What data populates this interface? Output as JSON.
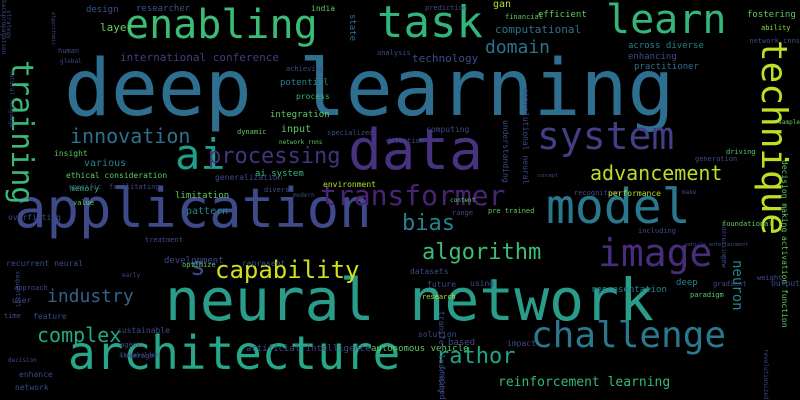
{
  "words": [
    {
      "text": "deep learning",
      "size": 78,
      "color": "#2e6e8e",
      "vertical": false
    },
    {
      "text": "neural network",
      "size": 58,
      "color": "#2a9d8a",
      "vertical": false
    },
    {
      "text": "application",
      "size": 54,
      "color": "#3f4a8a",
      "vertical": false
    },
    {
      "text": "architecture",
      "size": 46,
      "color": "#27a78a",
      "vertical": false
    },
    {
      "text": "data",
      "size": 56,
      "color": "#46327e",
      "vertical": false
    },
    {
      "text": "model",
      "size": 48,
      "color": "#2a788e",
      "vertical": false
    },
    {
      "text": "task",
      "size": 44,
      "color": "#31b57b",
      "vertical": false
    },
    {
      "text": "enabling",
      "size": 40,
      "color": "#3bbb75",
      "vertical": false
    },
    {
      "text": "learn",
      "size": 40,
      "color": "#34b679",
      "vertical": false
    },
    {
      "text": "technique",
      "size": 36,
      "color": "#bddf26",
      "vertical": true
    },
    {
      "text": "system",
      "size": 38,
      "color": "#433e85",
      "vertical": false
    },
    {
      "text": "ai",
      "size": 42,
      "color": "#1f9e89",
      "vertical": false
    },
    {
      "text": "training",
      "size": 30,
      "color": "#3aba76",
      "vertical": true
    },
    {
      "text": "image",
      "size": 38,
      "color": "#472d7b",
      "vertical": false
    },
    {
      "text": "challenge",
      "size": 36,
      "color": "#2a788e",
      "vertical": false
    },
    {
      "text": "transformer",
      "size": 28,
      "color": "#482475",
      "vertical": false
    },
    {
      "text": "processing",
      "size": 22,
      "color": "#46327e",
      "vertical": false
    },
    {
      "text": "innovation",
      "size": 20,
      "color": "#2d708e",
      "vertical": false
    },
    {
      "text": "advancement",
      "size": 20,
      "color": "#b8de29",
      "vertical": false
    },
    {
      "text": "bias",
      "size": 22,
      "color": "#26828e",
      "vertical": false
    },
    {
      "text": "algorithm",
      "size": 22,
      "color": "#3fbc73",
      "vertical": false
    },
    {
      "text": "capability",
      "size": 24,
      "color": "#d0e11c",
      "vertical": false
    },
    {
      "text": "s",
      "size": 26,
      "color": "#3e4a89",
      "vertical": false
    },
    {
      "text": "industry",
      "size": 18,
      "color": "#33638d",
      "vertical": false
    },
    {
      "text": "complex",
      "size": 20,
      "color": "#22a884",
      "vertical": false
    },
    {
      "text": "rathor",
      "size": 22,
      "color": "#20a386",
      "vertical": false
    },
    {
      "text": "domain",
      "size": 18,
      "color": "#2c728e",
      "vertical": false
    },
    {
      "text": "reinforcement learning",
      "size": 13,
      "color": "#35b779",
      "vertical": false
    },
    {
      "text": "neuron",
      "size": 14,
      "color": "#26828e",
      "vertical": true
    },
    {
      "text": "international conference",
      "size": 11,
      "color": "#443b84",
      "vertical": false
    },
    {
      "text": "layer",
      "size": 11,
      "color": "#6ece58",
      "vertical": false
    },
    {
      "text": "researcher",
      "size": 9,
      "color": "#3b528b",
      "vertical": false
    },
    {
      "text": "design",
      "size": 9,
      "color": "#3b528b",
      "vertical": false
    },
    {
      "text": "computational",
      "size": 11,
      "color": "#2c728e",
      "vertical": false
    },
    {
      "text": "technology",
      "size": 11,
      "color": "#3e4a89",
      "vertical": false
    },
    {
      "text": "across diverse",
      "size": 9,
      "color": "#26828e",
      "vertical": false
    },
    {
      "text": "enhancing",
      "size": 9,
      "color": "#3e4a89",
      "vertical": false
    },
    {
      "text": "practitioner",
      "size": 9,
      "color": "#2d708e",
      "vertical": false
    },
    {
      "text": "efficient",
      "size": 9,
      "color": "#5ec962",
      "vertical": false
    },
    {
      "text": "fostering",
      "size": 9,
      "color": "#5ec962",
      "vertical": false
    },
    {
      "text": "ability",
      "size": 7,
      "color": "#8fd744",
      "vertical": false
    },
    {
      "text": "network cnns",
      "size": 7,
      "color": "#3e4a89",
      "vertical": false
    },
    {
      "text": "gan",
      "size": 10,
      "color": "#b5de2b",
      "vertical": false
    },
    {
      "text": "financial",
      "size": 7,
      "color": "#5ec962",
      "vertical": false
    },
    {
      "text": "prediction",
      "size": 7,
      "color": "#3e4a89",
      "vertical": false
    },
    {
      "text": "india",
      "size": 8,
      "color": "#5ec962",
      "vertical": false
    },
    {
      "text": "state",
      "size": 9,
      "color": "#2d708e",
      "vertical": true
    },
    {
      "text": "analysis",
      "size": 7,
      "color": "#3e4a89",
      "vertical": false
    },
    {
      "text": "human",
      "size": 7,
      "color": "#3e4a89",
      "vertical": false
    },
    {
      "text": "global",
      "size": 6,
      "color": "#3e4a89",
      "vertical": false
    },
    {
      "text": "achieving",
      "size": 7,
      "color": "#3e4a89",
      "vertical": false
    },
    {
      "text": "potential",
      "size": 9,
      "color": "#26828e",
      "vertical": false
    },
    {
      "text": "process",
      "size": 8,
      "color": "#35b779",
      "vertical": false
    },
    {
      "text": "integration",
      "size": 9,
      "color": "#5ec962",
      "vertical": false
    },
    {
      "text": "input",
      "size": 10,
      "color": "#5ec962",
      "vertical": false
    },
    {
      "text": "dynamic",
      "size": 7,
      "color": "#5ec962",
      "vertical": false
    },
    {
      "text": "network rnns",
      "size": 6,
      "color": "#5ec962",
      "vertical": false
    },
    {
      "text": "ai system",
      "size": 9,
      "color": "#35b779",
      "vertical": false
    },
    {
      "text": "specialized",
      "size": 7,
      "color": "#3e4a89",
      "vertical": false
    },
    {
      "text": "computing",
      "size": 8,
      "color": "#3e4a89",
      "vertical": false
    },
    {
      "text": "detection",
      "size": 7,
      "color": "#3e4a89",
      "vertical": false
    },
    {
      "text": "understanding",
      "size": 8,
      "color": "#3e4a89",
      "vertical": true
    },
    {
      "text": "convolutional neural",
      "size": 8,
      "color": "#3e4a89",
      "vertical": true
    },
    {
      "text": "ethical consideration",
      "size": 8,
      "color": "#5ec962",
      "vertical": false
    },
    {
      "text": "various",
      "size": 10,
      "color": "#26828e",
      "vertical": false
    },
    {
      "text": "insight",
      "size": 8,
      "color": "#5ec962",
      "vertical": false
    },
    {
      "text": "facilitating",
      "size": 7,
      "color": "#3e4a89",
      "vertical": false
    },
    {
      "text": "memory",
      "size": 8,
      "color": "#35b779",
      "vertical": false
    },
    {
      "text": "specific",
      "size": 7,
      "color": "#3e4a89",
      "vertical": false
    },
    {
      "text": "value",
      "size": 7,
      "color": "#5ec962",
      "vertical": false
    },
    {
      "text": "limitation",
      "size": 9,
      "color": "#5ec962",
      "vertical": false
    },
    {
      "text": "generalization",
      "size": 8,
      "color": "#3e4a89",
      "vertical": false
    },
    {
      "text": "diverse",
      "size": 7,
      "color": "#3e4a89",
      "vertical": false
    },
    {
      "text": "pattern",
      "size": 10,
      "color": "#26828e",
      "vertical": false
    },
    {
      "text": "environment",
      "size": 8,
      "color": "#b5de2b",
      "vertical": false
    },
    {
      "text": "modern",
      "size": 6,
      "color": "#3e4a89",
      "vertical": false
    },
    {
      "text": "concept",
      "size": 5,
      "color": "#3e4a89",
      "vertical": false
    },
    {
      "text": "recognition",
      "size": 7,
      "color": "#3e4a89",
      "vertical": false
    },
    {
      "text": "performance",
      "size": 8,
      "color": "#b5de2b",
      "vertical": false
    },
    {
      "text": "make",
      "size": 6,
      "color": "#3e4a89",
      "vertical": false
    },
    {
      "text": "generation",
      "size": 7,
      "color": "#3e4a89",
      "vertical": false
    },
    {
      "text": "driving",
      "size": 7,
      "color": "#5ec962",
      "vertical": false
    },
    {
      "text": "sample",
      "size": 6,
      "color": "#5ec962",
      "vertical": false
    },
    {
      "text": "activation function",
      "size": 8,
      "color": "#5ec962",
      "vertical": true
    },
    {
      "text": "decision making",
      "size": 8,
      "color": "#5ec962",
      "vertical": true
    },
    {
      "text": "addressing",
      "size": 6,
      "color": "#3e4a89",
      "vertical": true
    },
    {
      "text": "content",
      "size": 6,
      "color": "#5ec962",
      "vertical": false
    },
    {
      "text": "pre trained",
      "size": 7,
      "color": "#5ec962",
      "vertical": false
    },
    {
      "text": "range",
      "size": 7,
      "color": "#3e4a89",
      "vertical": false
    },
    {
      "text": "including",
      "size": 7,
      "color": "#3e4a89",
      "vertical": false
    },
    {
      "text": "vehicle entertainment",
      "size": 5,
      "color": "#3e4a89",
      "vertical": false
    },
    {
      "text": "foundational",
      "size": 7,
      "color": "#5ec962",
      "vertical": false
    },
    {
      "text": "new",
      "size": 7,
      "color": "#3e4a89",
      "vertical": true
    },
    {
      "text": "deep",
      "size": 9,
      "color": "#26828e",
      "vertical": false
    },
    {
      "text": "gradient",
      "size": 7,
      "color": "#3e4a89",
      "vertical": false
    },
    {
      "text": "weight",
      "size": 7,
      "color": "#3e4a89",
      "vertical": false
    },
    {
      "text": "early",
      "size": 6,
      "color": "#3e4a89",
      "vertical": false
    },
    {
      "text": "development",
      "size": 9,
      "color": "#3e4a89",
      "vertical": false
    },
    {
      "text": "optimize",
      "size": 7,
      "color": "#5ec962",
      "vertical": false
    },
    {
      "text": "represent",
      "size": 8,
      "color": "#3e4a89",
      "vertical": false
    },
    {
      "text": "treatment",
      "size": 7,
      "color": "#3e4a89",
      "vertical": false
    },
    {
      "text": "sequential",
      "size": 6,
      "color": "#3e4a89",
      "vertical": true
    },
    {
      "text": "recurrent neural",
      "size": 8,
      "color": "#3e4a89",
      "vertical": false
    },
    {
      "text": "approach",
      "size": 7,
      "color": "#3e4a89",
      "vertical": false
    },
    {
      "text": "user",
      "size": 8,
      "color": "#3e4a89",
      "vertical": false
    },
    {
      "text": "feature",
      "size": 8,
      "color": "#3e4a89",
      "vertical": false
    },
    {
      "text": "sustainable",
      "size": 8,
      "color": "#3e4a89",
      "vertical": false
    },
    {
      "text": "datasets",
      "size": 8,
      "color": "#3e4a89",
      "vertical": false
    },
    {
      "text": "research",
      "size": 7,
      "color": "#b5de2b",
      "vertical": false
    },
    {
      "text": "future",
      "size": 8,
      "color": "#3e4a89",
      "vertical": false
    },
    {
      "text": "using",
      "size": 8,
      "color": "#3e4a89",
      "vertical": false
    },
    {
      "text": "representation",
      "size": 9,
      "color": "#26828e",
      "vertical": false
    },
    {
      "text": "paradigm",
      "size": 7,
      "color": "#5ec962",
      "vertical": false
    },
    {
      "text": "time",
      "size": 7,
      "color": "#3e4a89",
      "vertical": false
    },
    {
      "text": "agent",
      "size": 7,
      "color": "#3e4a89",
      "vertical": false
    },
    {
      "text": "artificial intelligence",
      "size": 9,
      "color": "#3e4a89",
      "vertical": false
    },
    {
      "text": "autonomous vehicle",
      "size": 9,
      "color": "#5ec962",
      "vertical": false
    },
    {
      "text": "based",
      "size": 9,
      "color": "#3e4a89",
      "vertical": false
    },
    {
      "text": "impact",
      "size": 8,
      "color": "#3e4a89",
      "vertical": false
    },
    {
      "text": "leverage",
      "size": 7,
      "color": "#3e4a89",
      "vertical": false
    },
    {
      "text": "stakeholder",
      "size": 6,
      "color": "#3e4a89",
      "vertical": false
    },
    {
      "text": "decision",
      "size": 6,
      "color": "#3e4a89",
      "vertical": false
    },
    {
      "text": "enhance",
      "size": 8,
      "color": "#3e4a89",
      "vertical": false
    },
    {
      "text": "network",
      "size": 8,
      "color": "#3e4a89",
      "vertical": false
    },
    {
      "text": "solution",
      "size": 8,
      "color": "#3e4a89",
      "vertical": false
    },
    {
      "text": "transfer learning",
      "size": 8,
      "color": "#3e4a89",
      "vertical": true
    },
    {
      "text": "trained",
      "size": 8,
      "color": "#3e4a89",
      "vertical": true
    },
    {
      "text": "overfitting",
      "size": 8,
      "color": "#3e4a89",
      "vertical": false
    },
    {
      "text": "natural language",
      "size": 6,
      "color": "#3e4a89",
      "vertical": true
    },
    {
      "text": "strategy",
      "size": 6,
      "color": "#3e4a89",
      "vertical": true
    },
    {
      "text": "algorithmic",
      "size": 5,
      "color": "#3e4a89",
      "vertical": true
    },
    {
      "text": "revolutionized",
      "size": 6,
      "color": "#3e4a89",
      "vertical": true
    },
    {
      "text": "output",
      "size": 8,
      "color": "#3e4a89",
      "vertical": false
    },
    {
      "text": "backpropagation",
      "size": 6,
      "color": "#3e4a89",
      "vertical": true
    }
  ]
}
